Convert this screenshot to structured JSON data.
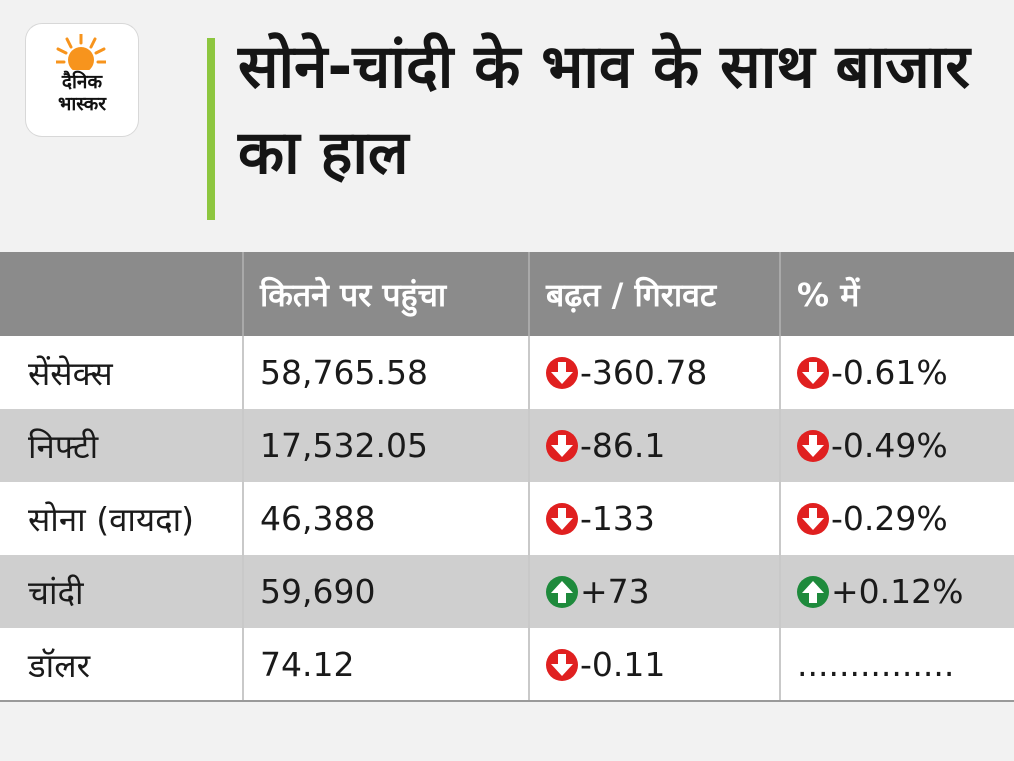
{
  "logo": {
    "line1": "दैनिक",
    "line2": "भास्कर",
    "accent_color": "#f7941d"
  },
  "title": "सोने-चांदी के भाव के साथ बाजार का हाल",
  "colors": {
    "accent_bar": "#8dc63f",
    "down": "#e02020",
    "up": "#1e8a3c"
  },
  "table": {
    "headers": [
      "",
      "कितने पर पहुंचा",
      "बढ़त / गिरावट",
      "% में"
    ],
    "rows": [
      {
        "name": "सेंसेक्स",
        "value": "58,765.58",
        "change": "-360.78",
        "change_dir": "down",
        "pct": "-0.61%",
        "pct_dir": "down"
      },
      {
        "name": "निफ्टी",
        "value": "17,532.05",
        "change": "-86.1",
        "change_dir": "down",
        "pct": "-0.49%",
        "pct_dir": "down"
      },
      {
        "name": "सोना (वायदा)",
        "value": "46,388",
        "change": "-133",
        "change_dir": "down",
        "pct": "-0.29%",
        "pct_dir": "down"
      },
      {
        "name": "चांदी",
        "value": "59,690",
        "change": "+73",
        "change_dir": "up",
        "pct": "+0.12%",
        "pct_dir": "up"
      },
      {
        "name": "डॉलर",
        "value": "74.12",
        "change": "-0.11",
        "change_dir": "down",
        "pct": "...............",
        "pct_dir": "none"
      }
    ]
  }
}
